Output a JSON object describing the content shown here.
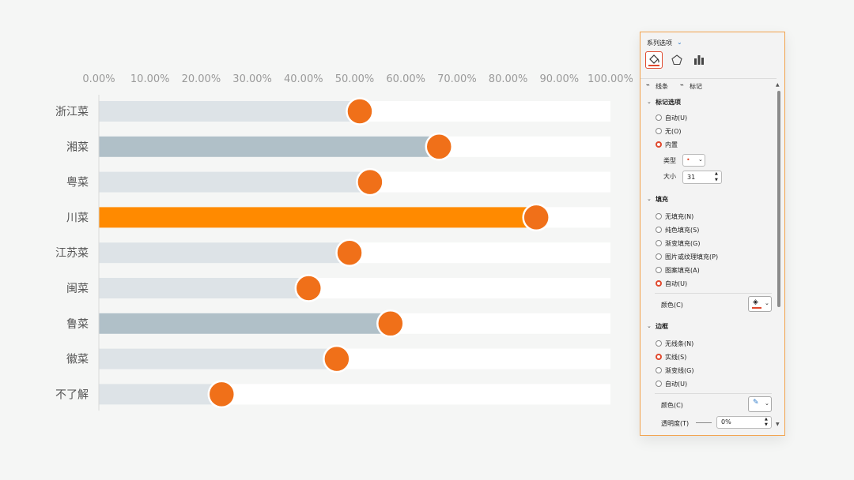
{
  "chart_data": {
    "type": "bar",
    "categories": [
      "浙江菜",
      "湘菜",
      "粤菜",
      "川菜",
      "江苏菜",
      "闽菜",
      "鲁菜",
      "徽菜",
      "不了解"
    ],
    "values": [
      0.51,
      0.665,
      0.53,
      0.855,
      0.49,
      0.41,
      0.57,
      0.465,
      0.24
    ],
    "highlight": [
      "light",
      "mid",
      "light",
      "accent",
      "light",
      "light",
      "mid",
      "light",
      "light"
    ],
    "x_ticks": [
      "0.00%",
      "10.00%",
      "20.00%",
      "30.00%",
      "40.00%",
      "50.00%",
      "60.00%",
      "70.00%",
      "80.00%",
      "90.00%",
      "100.00%"
    ],
    "xlim": [
      0,
      1
    ],
    "x_axis_position": "top",
    "grid": false,
    "colors": {
      "track": "#ffffff",
      "bar_light": "#dde3e7",
      "bar_mid": "#b0c0c8",
      "bar_accent": "#ff8a00",
      "marker": "#f07019",
      "marker_border": "#ffffff"
    }
  },
  "panel": {
    "header": "系列选项",
    "tabs": [
      "fill-line-icon",
      "effects-icon",
      "series-options-icon"
    ],
    "subtabs": {
      "line": "线条",
      "marker": "标记"
    },
    "marker_options": {
      "title": "标记选项",
      "options": [
        "自动(U)",
        "无(O)",
        "内置"
      ],
      "selected": "内置",
      "type_label": "类型",
      "size_label": "大小",
      "size_value": "31"
    },
    "fill": {
      "title": "填充",
      "options": [
        "无填充(N)",
        "纯色填充(S)",
        "渐变填充(G)",
        "图片或纹理填充(P)",
        "图案填充(A)",
        "自动(U)"
      ],
      "selected": "自动(U)",
      "color_label": "颜色(C)"
    },
    "border": {
      "title": "边框",
      "options": [
        "无线条(N)",
        "实线(S)",
        "渐变线(G)",
        "自动(U)"
      ],
      "selected": "实线(S)",
      "color_label": "颜色(C)",
      "transparency_label": "透明度(T)",
      "transparency_value": "0%"
    },
    "colors": {
      "accent": "#e0492e",
      "border": "#f2a34d"
    }
  }
}
